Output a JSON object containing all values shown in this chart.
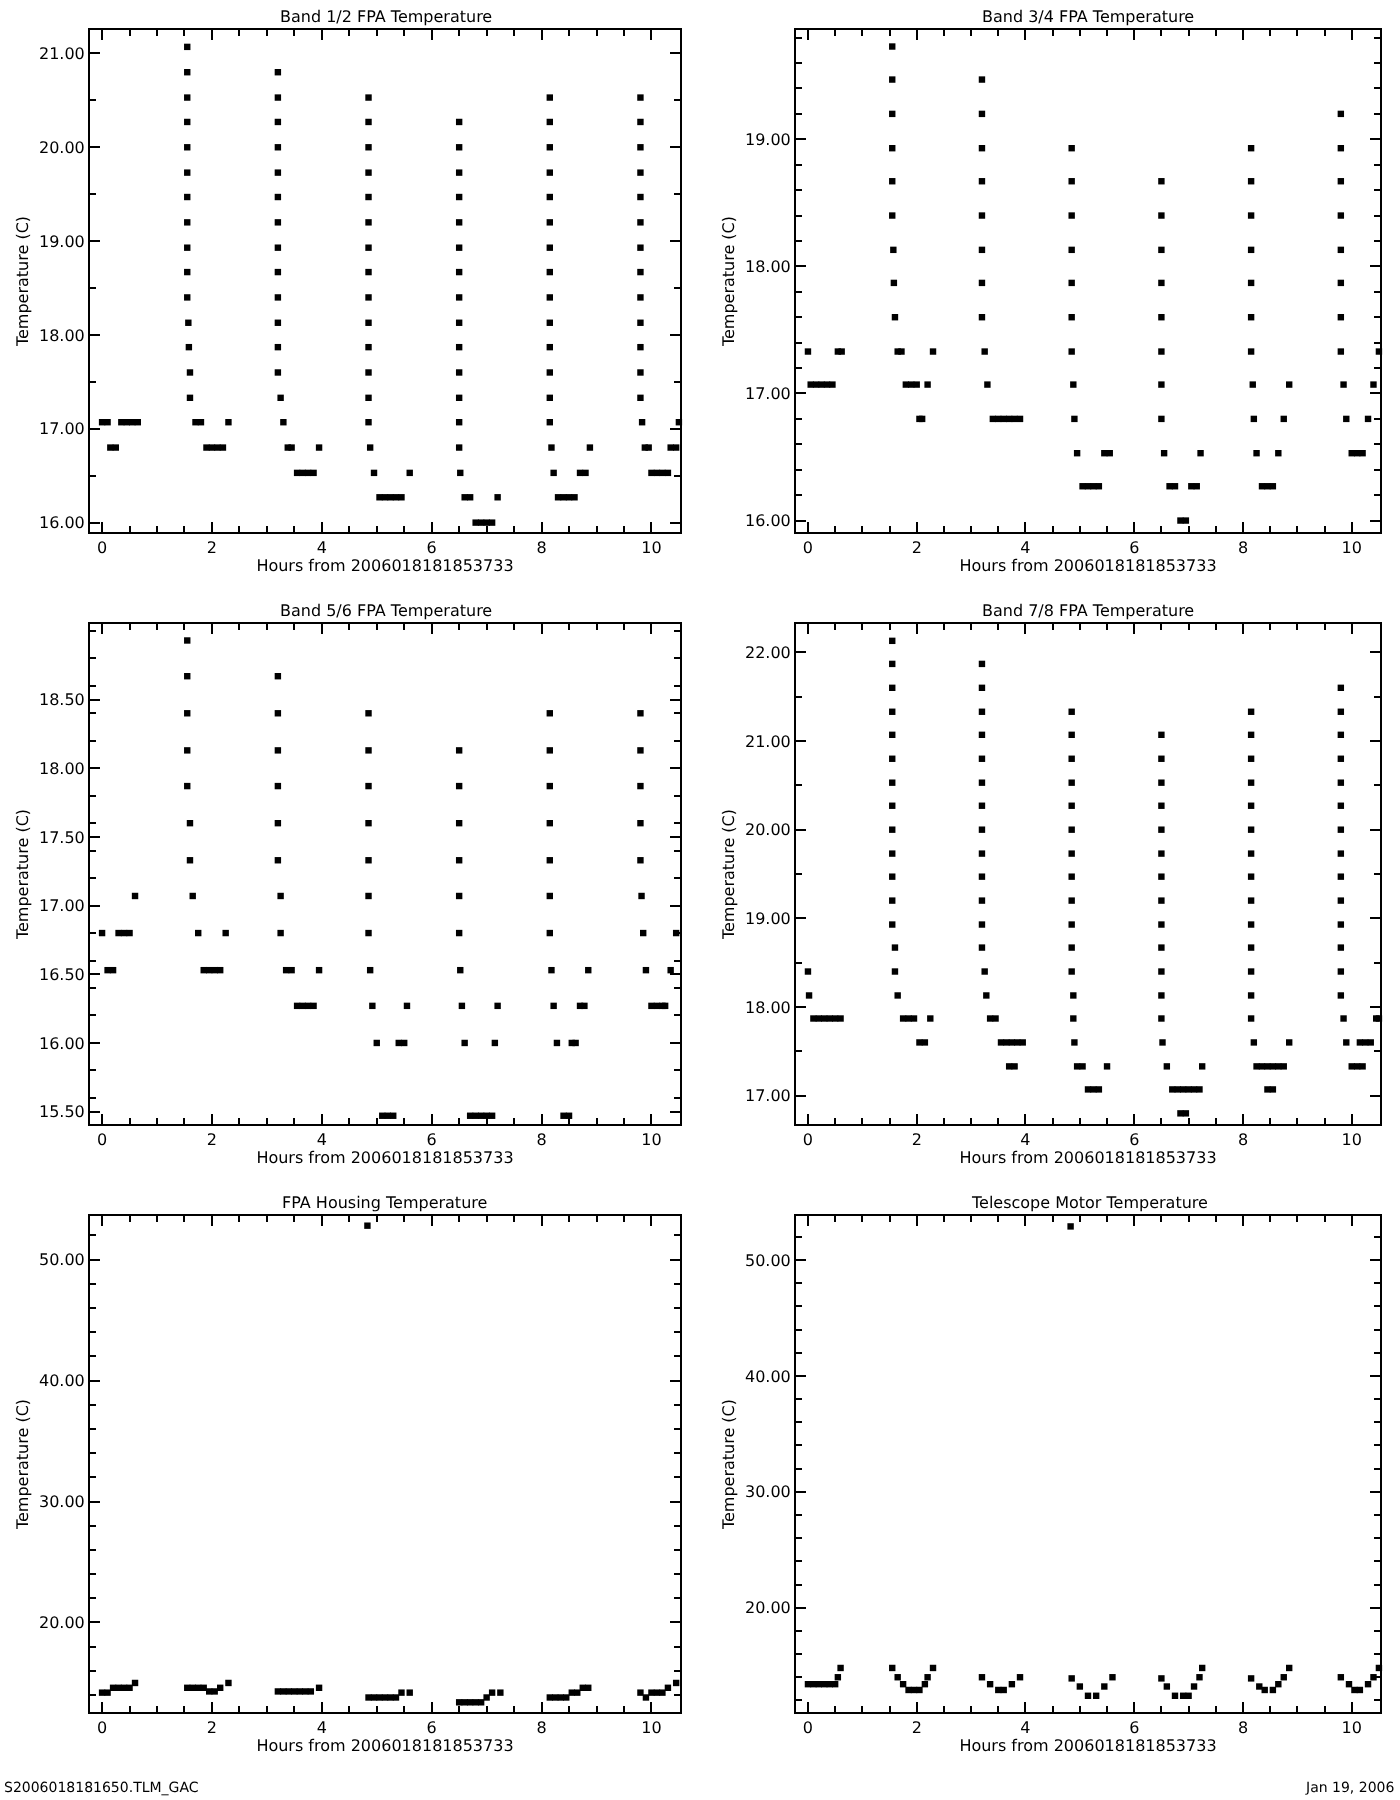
{
  "chart_data": [
    {
      "type": "scatter",
      "title": "Band 1/2 FPA Temperature",
      "xlabel": "Hours from 2006018181853733",
      "ylabel": "Temperature (C)",
      "marker": "square",
      "grid": false,
      "xlim": [
        -0.22,
        10.52
      ],
      "xticks": [
        0,
        2,
        4,
        6,
        8,
        10
      ],
      "ylim": [
        15.9,
        21.25
      ],
      "yticks": [
        {
          "value": 16,
          "label": "16.00"
        },
        {
          "value": 17,
          "label": "17.00"
        },
        {
          "value": 18,
          "label": "18.00"
        },
        {
          "value": 19,
          "label": "19.00"
        },
        {
          "value": 20,
          "label": "20.00"
        },
        {
          "value": 21,
          "label": "21.00"
        }
      ],
      "series": [
        {
          "color": "#000000",
          "x": [
            0,
            0.1,
            0.15,
            0.25,
            0.35,
            0.45,
            0.55,
            0.65,
            1.6,
            1.6,
            1.58,
            1.57,
            1.55,
            1.55,
            1.55,
            1.55,
            1.55,
            1.55,
            1.55,
            1.55,
            1.55,
            1.55,
            1.55,
            1.7,
            1.8,
            1.9,
            2.0,
            2.1,
            2.2,
            2.3,
            3.25,
            3.2,
            3.2,
            3.2,
            3.2,
            3.2,
            3.2,
            3.2,
            3.2,
            3.2,
            3.2,
            3.2,
            3.2,
            3.2,
            3.3,
            3.38,
            3.45,
            3.55,
            3.65,
            3.75,
            3.85,
            3.95,
            4.88,
            4.85,
            4.85,
            4.85,
            4.85,
            4.85,
            4.85,
            4.85,
            4.85,
            4.85,
            4.85,
            4.85,
            4.85,
            4.85,
            4.85,
            4.95,
            5.05,
            5.15,
            5.25,
            5.35,
            5.45,
            5.6,
            6.52,
            6.5,
            6.5,
            6.5,
            6.5,
            6.5,
            6.5,
            6.5,
            6.5,
            6.5,
            6.5,
            6.5,
            6.5,
            6.5,
            6.5,
            6.6,
            6.7,
            6.8,
            6.9,
            7.0,
            7.1,
            7.2,
            8.18,
            8.15,
            8.15,
            8.15,
            8.15,
            8.15,
            8.15,
            8.15,
            8.15,
            8.15,
            8.15,
            8.15,
            8.15,
            8.15,
            8.15,
            8.22,
            8.3,
            8.4,
            8.5,
            8.6,
            8.7,
            8.8,
            8.88,
            9.83,
            9.8,
            9.8,
            9.8,
            9.8,
            9.8,
            9.8,
            9.8,
            9.8,
            9.8,
            9.8,
            9.8,
            9.8,
            9.8,
            9.88,
            9.95,
            10.0,
            10.1,
            10.2,
            10.3,
            10.35,
            10.45,
            10.5
          ],
          "values": [
            17.07,
            17.07,
            16.8,
            16.8,
            17.07,
            17.07,
            17.07,
            17.07,
            17.33,
            17.6,
            17.87,
            18.13,
            18.4,
            18.67,
            18.93,
            19.2,
            19.47,
            19.73,
            20.0,
            20.27,
            20.53,
            20.8,
            21.07,
            17.07,
            17.07,
            16.8,
            16.8,
            16.8,
            16.8,
            17.07,
            17.33,
            17.6,
            17.87,
            18.13,
            18.4,
            18.67,
            18.93,
            19.2,
            19.47,
            19.73,
            20.0,
            20.27,
            20.53,
            20.8,
            17.07,
            16.8,
            16.8,
            16.53,
            16.53,
            16.53,
            16.53,
            16.8,
            16.8,
            17.07,
            17.33,
            17.6,
            17.87,
            18.13,
            18.4,
            18.67,
            18.93,
            19.2,
            19.47,
            19.73,
            20.0,
            20.27,
            20.53,
            16.53,
            16.27,
            16.27,
            16.27,
            16.27,
            16.27,
            16.53,
            16.53,
            16.8,
            17.07,
            17.33,
            17.6,
            17.87,
            18.13,
            18.4,
            18.67,
            18.93,
            19.2,
            19.47,
            19.73,
            20.0,
            20.27,
            16.27,
            16.27,
            16.0,
            16.0,
            16.0,
            16.0,
            16.27,
            16.8,
            17.07,
            17.33,
            17.6,
            17.87,
            18.13,
            18.4,
            18.67,
            18.93,
            19.2,
            19.47,
            19.73,
            20.0,
            20.27,
            20.53,
            16.53,
            16.27,
            16.27,
            16.27,
            16.27,
            16.53,
            16.53,
            16.8,
            17.07,
            17.33,
            17.6,
            17.87,
            18.13,
            18.4,
            18.67,
            18.93,
            19.2,
            19.47,
            19.73,
            20.0,
            20.27,
            20.53,
            16.8,
            16.8,
            16.53,
            16.53,
            16.53,
            16.53,
            16.8,
            16.8,
            17.07
          ]
        }
      ]
    },
    {
      "type": "scatter",
      "title": "Band 3/4 FPA Temperature",
      "xlabel": "Hours from 2006018181853733",
      "ylabel": "Temperature (C)",
      "marker": "square",
      "grid": false,
      "xlim": [
        -0.22,
        10.52
      ],
      "xticks": [
        0,
        2,
        4,
        6,
        8,
        10
      ],
      "ylim": [
        15.91,
        19.86
      ],
      "yticks": [
        {
          "value": 16,
          "label": "16.00"
        },
        {
          "value": 17,
          "label": "17.00"
        },
        {
          "value": 18,
          "label": "18.00"
        },
        {
          "value": 19,
          "label": "19.00"
        }
      ],
      "series": [
        {
          "color": "#000000",
          "x": [
            0,
            0.05,
            0.15,
            0.25,
            0.35,
            0.45,
            0.55,
            0.62,
            1.6,
            1.58,
            1.57,
            1.55,
            1.55,
            1.55,
            1.55,
            1.55,
            1.55,
            1.65,
            1.72,
            1.8,
            1.9,
            2.0,
            2.05,
            2.1,
            2.2,
            2.3,
            3.25,
            3.2,
            3.2,
            3.2,
            3.2,
            3.2,
            3.2,
            3.2,
            3.2,
            3.3,
            3.4,
            3.5,
            3.6,
            3.7,
            3.8,
            3.9,
            4.9,
            4.88,
            4.85,
            4.85,
            4.85,
            4.85,
            4.85,
            4.85,
            4.85,
            4.95,
            5.05,
            5.15,
            5.25,
            5.35,
            5.45,
            5.55,
            6.55,
            6.5,
            6.5,
            6.5,
            6.5,
            6.5,
            6.5,
            6.5,
            6.5,
            6.65,
            6.75,
            6.85,
            6.95,
            7.05,
            7.15,
            7.22,
            8.18,
            8.15,
            8.15,
            8.15,
            8.15,
            8.15,
            8.15,
            8.15,
            8.2,
            8.25,
            8.35,
            8.45,
            8.55,
            8.65,
            8.75,
            8.85,
            9.8,
            9.8,
            9.8,
            9.8,
            9.8,
            9.8,
            9.8,
            9.8,
            9.85,
            9.9,
            10.0,
            10.1,
            10.2,
            10.3,
            10.4,
            10.5
          ],
          "values": [
            17.33,
            17.07,
            17.07,
            17.07,
            17.07,
            17.07,
            17.33,
            17.33,
            17.6,
            17.87,
            18.13,
            18.4,
            18.67,
            18.93,
            19.2,
            19.47,
            19.73,
            17.33,
            17.33,
            17.07,
            17.07,
            17.07,
            16.8,
            16.8,
            17.07,
            17.33,
            17.33,
            17.6,
            17.87,
            18.13,
            18.4,
            18.67,
            18.93,
            19.2,
            19.47,
            17.07,
            16.8,
            16.8,
            16.8,
            16.8,
            16.8,
            16.8,
            16.8,
            17.07,
            17.33,
            17.6,
            17.87,
            18.13,
            18.4,
            18.67,
            18.93,
            16.53,
            16.27,
            16.27,
            16.27,
            16.27,
            16.53,
            16.53,
            16.53,
            16.8,
            17.07,
            17.33,
            17.6,
            17.87,
            18.13,
            18.4,
            18.67,
            16.27,
            16.27,
            16.0,
            16.0,
            16.27,
            16.27,
            16.53,
            17.07,
            17.33,
            17.6,
            17.87,
            18.13,
            18.4,
            18.67,
            18.93,
            16.8,
            16.53,
            16.27,
            16.27,
            16.27,
            16.53,
            16.8,
            17.07,
            17.33,
            17.6,
            17.87,
            18.13,
            18.4,
            18.67,
            18.93,
            19.2,
            17.07,
            16.8,
            16.53,
            16.53,
            16.53,
            16.8,
            17.07,
            17.33
          ]
        }
      ]
    },
    {
      "type": "scatter",
      "title": "Band 5/6 FPA Temperature",
      "xlabel": "Hours from 2006018181853733",
      "ylabel": "Temperature (C)",
      "marker": "square",
      "grid": false,
      "xlim": [
        -0.22,
        10.52
      ],
      "xticks": [
        0,
        2,
        4,
        6,
        8,
        10
      ],
      "ylim": [
        15.41,
        19.05
      ],
      "yticks": [
        {
          "value": 15.5,
          "label": "15.50"
        },
        {
          "value": 16,
          "label": "16.00"
        },
        {
          "value": 16.5,
          "label": "16.50"
        },
        {
          "value": 17,
          "label": "17.00"
        },
        {
          "value": 17.5,
          "label": "17.50"
        },
        {
          "value": 18,
          "label": "18.00"
        },
        {
          "value": 18.5,
          "label": "18.50"
        }
      ],
      "series": [
        {
          "color": "#000000",
          "x": [
            0,
            0.1,
            0.2,
            0.3,
            0.4,
            0.5,
            0.6,
            1.65,
            1.6,
            1.6,
            1.55,
            1.55,
            1.55,
            1.55,
            1.55,
            1.75,
            1.85,
            1.95,
            2.05,
            2.15,
            2.25,
            3.25,
            3.25,
            3.2,
            3.2,
            3.2,
            3.2,
            3.2,
            3.2,
            3.35,
            3.45,
            3.55,
            3.65,
            3.75,
            3.85,
            3.95,
            4.88,
            4.85,
            4.85,
            4.85,
            4.85,
            4.85,
            4.85,
            4.85,
            4.92,
            5.0,
            5.1,
            5.2,
            5.3,
            5.4,
            5.5,
            5.55,
            6.52,
            6.5,
            6.5,
            6.5,
            6.5,
            6.5,
            6.5,
            6.55,
            6.6,
            6.7,
            6.8,
            6.9,
            7.0,
            7.1,
            7.15,
            7.2,
            8.18,
            8.15,
            8.15,
            8.15,
            8.15,
            8.15,
            8.15,
            8.15,
            8.22,
            8.28,
            8.4,
            8.5,
            8.55,
            8.62,
            8.7,
            8.78,
            8.85,
            9.82,
            9.8,
            9.8,
            9.8,
            9.8,
            9.8,
            9.85,
            9.9,
            10.0,
            10.1,
            10.2,
            10.25,
            10.35,
            10.45
          ],
          "values": [
            16.8,
            16.53,
            16.53,
            16.8,
            16.8,
            16.8,
            17.07,
            17.07,
            17.33,
            17.6,
            17.87,
            18.13,
            18.4,
            18.67,
            18.93,
            16.8,
            16.53,
            16.53,
            16.53,
            16.53,
            16.8,
            16.8,
            17.07,
            17.33,
            17.6,
            17.87,
            18.13,
            18.4,
            18.67,
            16.53,
            16.53,
            16.27,
            16.27,
            16.27,
            16.27,
            16.53,
            16.53,
            16.8,
            17.07,
            17.33,
            17.6,
            17.87,
            18.13,
            18.4,
            16.27,
            16.0,
            15.47,
            15.47,
            15.47,
            16.0,
            16.0,
            16.27,
            16.53,
            16.8,
            17.07,
            17.33,
            17.6,
            17.87,
            18.13,
            16.27,
            16.0,
            15.47,
            15.47,
            15.47,
            15.47,
            15.47,
            16.0,
            16.27,
            16.53,
            16.8,
            17.07,
            17.33,
            17.6,
            17.87,
            18.13,
            18.4,
            16.27,
            16.0,
            15.47,
            15.47,
            16.0,
            16.0,
            16.27,
            16.27,
            16.53,
            17.07,
            17.33,
            17.6,
            17.87,
            18.13,
            18.4,
            16.8,
            16.53,
            16.27,
            16.27,
            16.27,
            16.27,
            16.53,
            16.8
          ]
        }
      ]
    },
    {
      "type": "scatter",
      "title": "Band 7/8 FPA Temperature",
      "xlabel": "Hours from 2006018181853733",
      "ylabel": "Temperature (C)",
      "marker": "square",
      "grid": false,
      "xlim": [
        -0.22,
        10.52
      ],
      "xticks": [
        0,
        2,
        4,
        6,
        8,
        10
      ],
      "ylim": [
        16.68,
        22.32
      ],
      "yticks": [
        {
          "value": 17,
          "label": "17.00"
        },
        {
          "value": 18,
          "label": "18.00"
        },
        {
          "value": 19,
          "label": "19.00"
        },
        {
          "value": 20,
          "label": "20.00"
        },
        {
          "value": 21,
          "label": "21.00"
        },
        {
          "value": 22,
          "label": "22.00"
        }
      ],
      "series": [
        {
          "color": "#000000",
          "x": [
            0,
            0.02,
            0.1,
            0.2,
            0.3,
            0.4,
            0.5,
            0.6,
            1.65,
            1.6,
            1.6,
            1.55,
            1.55,
            1.55,
            1.55,
            1.55,
            1.55,
            1.55,
            1.55,
            1.55,
            1.55,
            1.55,
            1.55,
            1.55,
            1.75,
            1.85,
            1.95,
            2.05,
            2.15,
            2.25,
            3.28,
            3.25,
            3.2,
            3.2,
            3.2,
            3.2,
            3.2,
            3.2,
            3.2,
            3.2,
            3.2,
            3.2,
            3.2,
            3.2,
            3.2,
            3.35,
            3.45,
            3.55,
            3.65,
            3.75,
            3.85,
            3.95,
            3.7,
            3.8,
            4.88,
            4.88,
            4.85,
            4.85,
            4.85,
            4.85,
            4.85,
            4.85,
            4.85,
            4.85,
            4.85,
            4.85,
            4.85,
            4.85,
            4.9,
            4.95,
            5.05,
            5.15,
            5.25,
            5.35,
            5.5,
            6.52,
            6.5,
            6.5,
            6.5,
            6.5,
            6.5,
            6.5,
            6.5,
            6.5,
            6.5,
            6.5,
            6.5,
            6.5,
            6.5,
            6.6,
            6.7,
            6.8,
            6.9,
            7.0,
            7.1,
            7.2,
            6.85,
            6.95,
            7.25,
            8.15,
            8.15,
            8.15,
            8.15,
            8.15,
            8.15,
            8.15,
            8.15,
            8.15,
            8.15,
            8.15,
            8.15,
            8.15,
            8.15,
            8.2,
            8.25,
            8.35,
            8.45,
            8.55,
            8.65,
            8.75,
            8.45,
            8.55,
            8.85,
            9.85,
            9.8,
            9.8,
            9.8,
            9.8,
            9.8,
            9.8,
            9.8,
            9.8,
            9.8,
            9.8,
            9.8,
            9.8,
            9.8,
            9.8,
            9.9,
            10.0,
            10.1,
            10.2,
            10.15,
            10.25,
            10.35,
            10.45,
            10.5
          ],
          "values": [
            18.4,
            18.13,
            17.87,
            17.87,
            17.87,
            17.87,
            17.87,
            17.87,
            18.13,
            18.4,
            18.67,
            18.93,
            19.2,
            19.47,
            19.73,
            20.0,
            20.27,
            20.53,
            20.8,
            21.07,
            21.33,
            21.6,
            21.87,
            22.13,
            17.87,
            17.87,
            17.87,
            17.6,
            17.6,
            17.87,
            18.13,
            18.4,
            18.67,
            18.93,
            19.2,
            19.47,
            19.73,
            20.0,
            20.27,
            20.53,
            20.8,
            21.07,
            21.33,
            21.6,
            21.87,
            17.87,
            17.87,
            17.6,
            17.6,
            17.6,
            17.6,
            17.6,
            17.33,
            17.33,
            17.87,
            18.13,
            18.4,
            18.67,
            18.93,
            19.2,
            19.47,
            19.73,
            20.0,
            20.27,
            20.53,
            20.8,
            21.07,
            21.33,
            17.6,
            17.33,
            17.33,
            17.07,
            17.07,
            17.07,
            17.33,
            17.6,
            17.87,
            18.13,
            18.4,
            18.67,
            18.93,
            19.2,
            19.47,
            19.73,
            20.0,
            20.27,
            20.53,
            20.8,
            21.07,
            17.33,
            17.07,
            17.07,
            17.07,
            17.07,
            17.07,
            17.07,
            16.8,
            16.8,
            17.33,
            17.87,
            18.13,
            18.4,
            18.67,
            18.93,
            19.2,
            19.47,
            19.73,
            20.0,
            20.27,
            20.53,
            20.8,
            21.07,
            21.33,
            17.6,
            17.33,
            17.33,
            17.33,
            17.33,
            17.33,
            17.33,
            17.07,
            17.07,
            17.6,
            17.87,
            18.13,
            18.4,
            18.67,
            18.93,
            19.2,
            19.47,
            19.73,
            20.0,
            20.27,
            20.53,
            20.8,
            21.07,
            21.33,
            21.6,
            17.6,
            17.33,
            17.33,
            17.33,
            17.6,
            17.6,
            17.6,
            17.87,
            17.87
          ]
        }
      ]
    },
    {
      "type": "scatter",
      "title": "FPA Housing Temperature",
      "xlabel": "Hours from 2006018181853733",
      "ylabel": "Temperature (C)",
      "marker": "square",
      "grid": false,
      "xlim": [
        -0.22,
        10.52
      ],
      "xticks": [
        0,
        2,
        4,
        6,
        8,
        10
      ],
      "ylim": [
        12.6,
        53.6
      ],
      "yticks": [
        {
          "value": 20,
          "label": "20.00"
        },
        {
          "value": 30,
          "label": "30.00"
        },
        {
          "value": 40,
          "label": "40.00"
        },
        {
          "value": 50,
          "label": "50.00"
        }
      ],
      "annotations": [
        "S2006018181650.TLM_GAC"
      ],
      "series": [
        {
          "color": "#000000",
          "x": [
            0,
            0.1,
            0.2,
            0.3,
            0.4,
            0.5,
            0.6,
            1.55,
            1.65,
            1.75,
            1.85,
            1.95,
            2.05,
            2.15,
            2.3,
            3.2,
            3.3,
            3.4,
            3.5,
            3.6,
            3.7,
            3.8,
            3.95,
            4.85,
            4.95,
            5.05,
            5.15,
            5.25,
            5.35,
            5.45,
            5.6,
            6.5,
            6.6,
            6.7,
            6.8,
            6.9,
            7.0,
            7.1,
            7.25,
            8.15,
            8.25,
            8.35,
            8.45,
            8.55,
            8.65,
            8.75,
            8.85,
            9.8,
            9.9,
            10.0,
            10.1,
            10.2,
            10.3,
            10.45,
            4.83
          ],
          "values": [
            14.2,
            14.2,
            14.6,
            14.6,
            14.6,
            14.6,
            15.0,
            14.6,
            14.6,
            14.6,
            14.6,
            14.3,
            14.3,
            14.6,
            15.0,
            14.3,
            14.3,
            14.3,
            14.3,
            14.3,
            14.3,
            14.3,
            14.6,
            13.8,
            13.8,
            13.8,
            13.8,
            13.8,
            13.8,
            14.2,
            14.2,
            13.4,
            13.4,
            13.4,
            13.4,
            13.4,
            13.8,
            14.2,
            14.2,
            13.8,
            13.8,
            13.8,
            13.8,
            14.2,
            14.2,
            14.6,
            14.6,
            14.2,
            13.8,
            14.2,
            14.2,
            14.2,
            14.6,
            15.0,
            52.8
          ]
        }
      ]
    },
    {
      "type": "scatter",
      "title": "Telescope Motor Temperature",
      "xlabel": "Hours from 2006018181853733",
      "ylabel": "Temperature (C)",
      "marker": "square",
      "grid": false,
      "xlim": [
        -0.22,
        10.52
      ],
      "xticks": [
        0,
        2,
        4,
        6,
        8,
        10
      ],
      "ylim": [
        11.0,
        53.8
      ],
      "yticks": [
        {
          "value": 20,
          "label": "20.00"
        },
        {
          "value": 30,
          "label": "30.00"
        },
        {
          "value": 40,
          "label": "40.00"
        },
        {
          "value": 50,
          "label": "50.00"
        }
      ],
      "annotations": [
        "Jan 19, 2006"
      ],
      "series": [
        {
          "color": "#000000",
          "x": [
            0,
            0.1,
            0.2,
            0.3,
            0.4,
            0.5,
            0.55,
            0.6,
            1.55,
            1.65,
            1.75,
            1.85,
            1.95,
            2.05,
            2.15,
            2.2,
            2.3,
            3.2,
            3.35,
            3.5,
            3.6,
            3.75,
            3.9,
            4.85,
            5.0,
            5.15,
            5.3,
            5.45,
            5.6,
            6.5,
            6.6,
            6.75,
            6.9,
            7.0,
            7.1,
            7.2,
            7.25,
            8.15,
            8.3,
            8.4,
            8.55,
            8.65,
            8.75,
            8.85,
            9.8,
            9.95,
            10.05,
            10.15,
            10.3,
            10.4,
            10.5,
            4.83
          ],
          "values": [
            13.4,
            13.4,
            13.4,
            13.4,
            13.4,
            13.4,
            14.0,
            14.8,
            14.8,
            14.0,
            13.4,
            12.9,
            12.9,
            12.9,
            13.4,
            14.0,
            14.8,
            14.0,
            13.4,
            12.9,
            12.9,
            13.4,
            14.0,
            13.9,
            13.2,
            12.4,
            12.4,
            13.2,
            14.0,
            13.9,
            13.2,
            12.4,
            12.4,
            12.4,
            13.2,
            14.0,
            14.8,
            13.9,
            13.2,
            12.9,
            12.9,
            13.4,
            14.0,
            14.8,
            14.0,
            13.4,
            12.9,
            12.9,
            13.4,
            14.0,
            14.8,
            52.9
          ]
        }
      ]
    }
  ]
}
